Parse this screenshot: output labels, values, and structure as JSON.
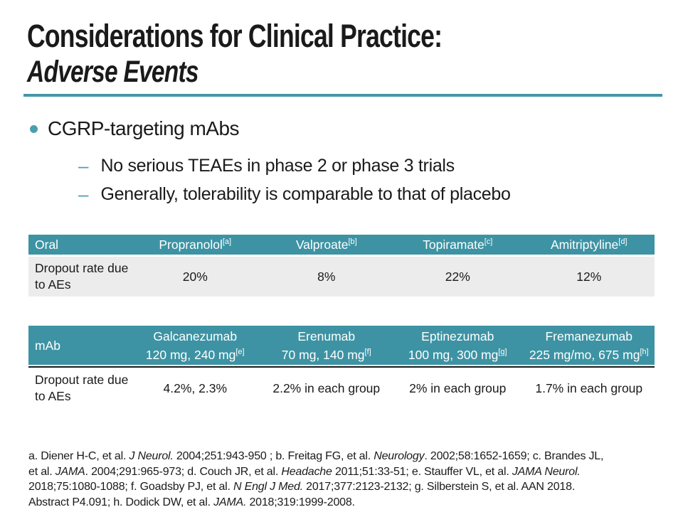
{
  "slide_title": {
    "line1": "Considerations for Clinical Practice:",
    "line2": "Adverse Events"
  },
  "bullets": {
    "main": "CGRP-targeting mAbs",
    "sub": [
      "No serious TEAEs in phase 2 or phase 3 trials",
      "Generally, tolerability is comparable to that of placebo"
    ]
  },
  "oral_table": {
    "columns": [
      {
        "name": "Oral"
      },
      {
        "name": "Propranolol",
        "sup": "[a]"
      },
      {
        "name": "Valproate",
        "sup": "[b]"
      },
      {
        "name": "Topiramate",
        "sup": "[c]"
      },
      {
        "name": "Amitriptyline",
        "sup": "[d]"
      }
    ],
    "row_label": "Dropout rate due to AEs",
    "values": [
      "20%",
      "8%",
      "22%",
      "12%"
    ]
  },
  "mab_table": {
    "columns": [
      {
        "name": "mAb"
      },
      {
        "name": "Galcanezumab",
        "dose": "120 mg, 240 mg",
        "sup": "[e]"
      },
      {
        "name": "Erenumab",
        "dose": "70 mg, 140 mg",
        "sup": "[f]"
      },
      {
        "name": "Eptinezumab",
        "dose": "100 mg, 300 mg",
        "sup": "[g]"
      },
      {
        "name": "Fremanezumab",
        "dose": "225 mg/mo, 675 mg",
        "sup": "[h]"
      }
    ],
    "row_label": "Dropout rate due to AEs",
    "values": [
      "4.2%, 2.3%",
      "2.2% in each group",
      "2% in each group",
      "1.7% in each group"
    ]
  },
  "references": {
    "lines": [
      [
        {
          "t": "a. Diener H-C, et al. "
        },
        {
          "t": "J Neurol.",
          "i": true
        },
        {
          "t": " 2004;251:943-950 ; b. Freitag FG, et al. "
        },
        {
          "t": "Neurology",
          "i": true
        },
        {
          "t": ". 2002;58:1652-1659; c. Brandes JL,"
        }
      ],
      [
        {
          "t": "et al. "
        },
        {
          "t": "JAMA",
          "i": true
        },
        {
          "t": ". 2004;291:965-973; d. Couch JR, et al. "
        },
        {
          "t": "Headache",
          "i": true
        },
        {
          "t": " 2011;51:33-51; e. Stauffer VL, et al. "
        },
        {
          "t": "JAMA Neurol.",
          "i": true
        }
      ],
      [
        {
          "t": "2018;75:1080-1088; f. Goadsby PJ, et al. "
        },
        {
          "t": "N Engl J Med.",
          "i": true
        },
        {
          "t": " 2017;377:2123-2132; g. Silberstein S, et al. AAN 2018."
        }
      ],
      [
        {
          "t": "Abstract P4.091; h. Dodick DW, et al. "
        },
        {
          "t": "JAMA.",
          "i": true
        },
        {
          "t": " 2018;319:1999-2008."
        }
      ]
    ]
  },
  "colors": {
    "teal_header": "#3D93A3",
    "teal_accent": "#4A9FAE",
    "teal_accent2": "#4397A7",
    "row_shade": "#ECECEC",
    "divider_dark": "#1A1A1A",
    "text": "#1A1A1A"
  }
}
